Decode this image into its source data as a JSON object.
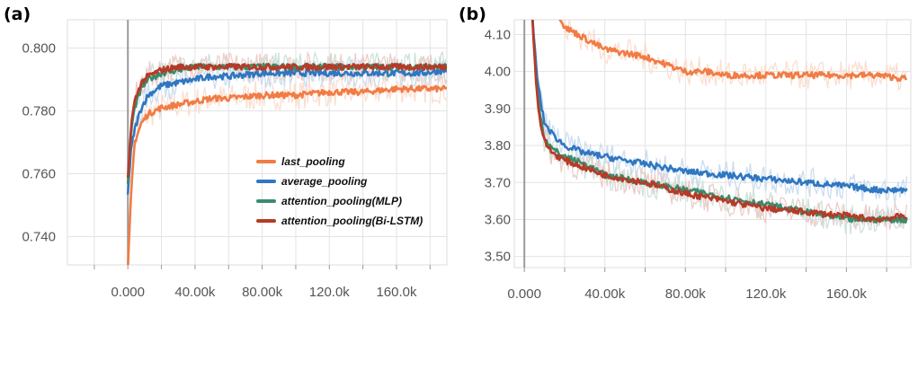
{
  "chart_data": [
    {
      "type": "line",
      "panel_label": "(a)",
      "title": "",
      "xlabel": "",
      "ylabel": "",
      "xlim": [
        -36000,
        190000
      ],
      "ylim": [
        0.731,
        0.809
      ],
      "x_ticks": [
        0,
        40000,
        80000,
        120000,
        160000
      ],
      "x_tick_labels": [
        "0.000",
        "40.00k",
        "80.00k",
        "120.0k",
        "160.0k"
      ],
      "y_ticks": [
        0.74,
        0.76,
        0.78,
        0.8
      ],
      "y_tick_labels": [
        "0.740",
        "0.760",
        "0.780",
        "0.800"
      ],
      "grid": true,
      "legend_position": "lower-right",
      "series": [
        {
          "name": "last_pooling",
          "color": "#f17c44",
          "x": [
            0,
            2000,
            4000,
            8000,
            12000,
            20000,
            30000,
            40000,
            50000,
            60000,
            80000,
            100000,
            120000,
            140000,
            160000,
            175000,
            190000
          ],
          "values": [
            0.729,
            0.754,
            0.77,
            0.776,
            0.779,
            0.781,
            0.782,
            0.783,
            0.784,
            0.784,
            0.785,
            0.785,
            0.786,
            0.786,
            0.787,
            0.787,
            0.787
          ]
        },
        {
          "name": "average_pooling",
          "color": "#2f77c2",
          "x": [
            0,
            2000,
            4000,
            8000,
            12000,
            20000,
            30000,
            40000,
            50000,
            60000,
            80000,
            100000,
            120000,
            140000,
            160000,
            175000,
            190000
          ],
          "values": [
            0.754,
            0.768,
            0.774,
            0.781,
            0.785,
            0.788,
            0.789,
            0.79,
            0.791,
            0.791,
            0.792,
            0.792,
            0.792,
            0.792,
            0.792,
            0.792,
            0.793
          ]
        },
        {
          "name": "attention_pooling(MLP)",
          "color": "#3a8c6c",
          "x": [
            0,
            2000,
            4000,
            8000,
            12000,
            20000,
            30000,
            40000,
            50000,
            60000,
            80000,
            100000,
            120000,
            140000,
            160000,
            175000,
            190000
          ],
          "values": [
            0.756,
            0.774,
            0.781,
            0.787,
            0.79,
            0.792,
            0.793,
            0.794,
            0.794,
            0.794,
            0.794,
            0.794,
            0.794,
            0.794,
            0.794,
            0.794,
            0.794
          ]
        },
        {
          "name": "attention_pooling(Bi-LSTM)",
          "color": "#b63a27",
          "x": [
            0,
            2000,
            4000,
            8000,
            12000,
            20000,
            30000,
            40000,
            50000,
            60000,
            80000,
            100000,
            120000,
            140000,
            160000,
            175000,
            190000
          ],
          "values": [
            0.758,
            0.776,
            0.783,
            0.789,
            0.791,
            0.793,
            0.794,
            0.794,
            0.794,
            0.794,
            0.794,
            0.794,
            0.794,
            0.794,
            0.794,
            0.794,
            0.794
          ]
        }
      ]
    },
    {
      "type": "line",
      "panel_label": "(b)",
      "title": "",
      "xlabel": "",
      "ylabel": "",
      "xlim": [
        -5000,
        192000
      ],
      "ylim": [
        3.47,
        4.14
      ],
      "x_ticks": [
        0,
        40000,
        80000,
        120000,
        160000
      ],
      "x_tick_labels": [
        "0.000",
        "40.00k",
        "80.00k",
        "120.0k",
        "160.0k"
      ],
      "y_ticks": [
        3.5,
        3.6,
        3.7,
        3.8,
        3.9,
        4.0,
        4.1
      ],
      "y_tick_labels": [
        "3.50",
        "3.60",
        "3.70",
        "3.80",
        "3.90",
        "4.00",
        "4.10"
      ],
      "grid": true,
      "legend_position": "none",
      "series": [
        {
          "name": "last_pooling",
          "color": "#f17c44",
          "x": [
            10000,
            15000,
            20000,
            30000,
            40000,
            50000,
            60000,
            70000,
            80000,
            90000,
            100000,
            120000,
            140000,
            160000,
            175000,
            190000
          ],
          "values": [
            4.3,
            4.18,
            4.12,
            4.09,
            4.06,
            4.05,
            4.04,
            4.02,
            4.0,
            4.0,
            3.99,
            3.99,
            3.99,
            3.99,
            3.99,
            3.98
          ]
        },
        {
          "name": "average_pooling",
          "color": "#2f77c2",
          "x": [
            4000,
            6000,
            8000,
            10000,
            14000,
            20000,
            30000,
            40000,
            50000,
            60000,
            80000,
            100000,
            120000,
            140000,
            160000,
            175000,
            190000
          ],
          "values": [
            4.15,
            4.0,
            3.92,
            3.86,
            3.83,
            3.8,
            3.78,
            3.77,
            3.76,
            3.75,
            3.73,
            3.72,
            3.71,
            3.7,
            3.69,
            3.68,
            3.68
          ]
        },
        {
          "name": "attention_pooling(MLP)",
          "color": "#3a8c6c",
          "x": [
            4000,
            6000,
            8000,
            10000,
            14000,
            20000,
            30000,
            40000,
            50000,
            60000,
            80000,
            100000,
            120000,
            140000,
            160000,
            175000,
            190000
          ],
          "values": [
            4.15,
            3.96,
            3.88,
            3.82,
            3.79,
            3.77,
            3.75,
            3.72,
            3.71,
            3.7,
            3.68,
            3.66,
            3.64,
            3.62,
            3.6,
            3.6,
            3.6
          ]
        },
        {
          "name": "attention_pooling(Bi-LSTM)",
          "color": "#b63a27",
          "x": [
            4000,
            6000,
            8000,
            10000,
            14000,
            20000,
            30000,
            40000,
            50000,
            60000,
            80000,
            100000,
            120000,
            140000,
            160000,
            175000,
            190000
          ],
          "values": [
            4.15,
            3.95,
            3.86,
            3.81,
            3.78,
            3.76,
            3.74,
            3.72,
            3.71,
            3.7,
            3.67,
            3.65,
            3.63,
            3.62,
            3.61,
            3.6,
            3.61
          ]
        }
      ]
    }
  ]
}
